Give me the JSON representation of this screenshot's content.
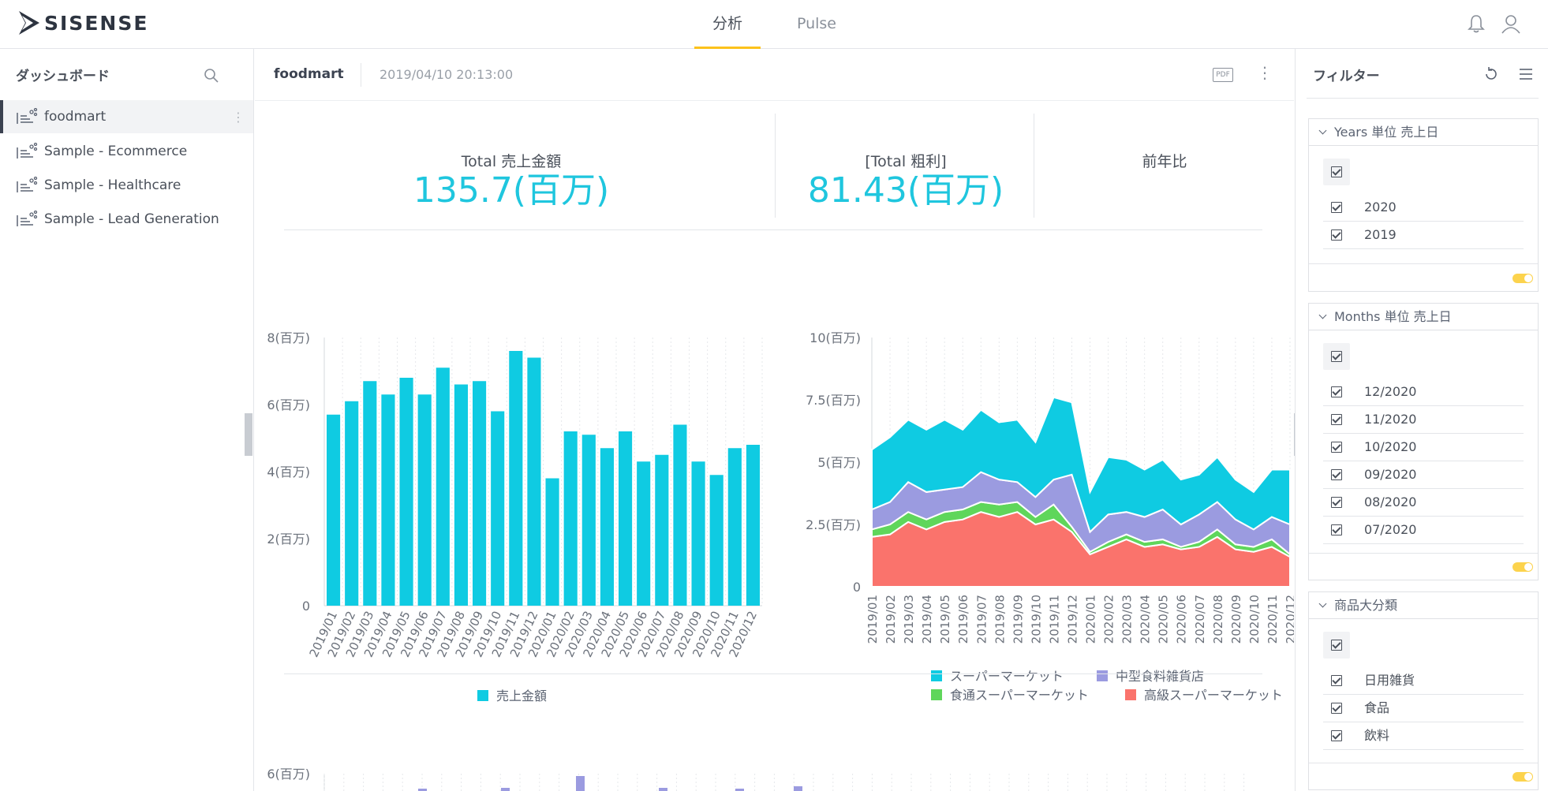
{
  "app": {
    "logo_text": "SISENSE"
  },
  "nav": {
    "tabs": [
      {
        "label": "分析",
        "active": true
      },
      {
        "label": "Pulse",
        "active": false
      }
    ]
  },
  "left": {
    "title": "ダッシュボード",
    "items": [
      {
        "label": "foodmart",
        "active": true
      },
      {
        "label": "Sample - Ecommerce"
      },
      {
        "label": "Sample - Healthcare"
      },
      {
        "label": "Sample - Lead Generation"
      }
    ]
  },
  "dashboard": {
    "name": "foodmart",
    "timestamp": "2019/04/10 20:13:00",
    "pdf_label": "PDF"
  },
  "kpis": [
    {
      "title": "Total 売上金額",
      "value": "135.7(百万)"
    },
    {
      "title": "[Total 粗利]",
      "value": "81.43(百万)"
    },
    {
      "title": "前年比",
      "value": ""
    }
  ],
  "chart_data": [
    {
      "type": "bar",
      "categories": [
        "2019/01",
        "2019/02",
        "2019/03",
        "2019/04",
        "2019/05",
        "2019/06",
        "2019/07",
        "2019/08",
        "2019/09",
        "2019/10",
        "2019/11",
        "2019/12",
        "2020/01",
        "2020/02",
        "2020/03",
        "2020/04",
        "2020/05",
        "2020/06",
        "2020/07",
        "2020/08",
        "2020/09",
        "2020/10",
        "2020/11",
        "2020/12"
      ],
      "series": [
        {
          "name": "売上金額",
          "values": [
            5.7,
            6.1,
            6.7,
            6.3,
            6.8,
            6.3,
            7.1,
            6.6,
            6.7,
            5.8,
            7.6,
            7.4,
            3.8,
            5.2,
            5.1,
            4.7,
            5.2,
            4.3,
            4.5,
            5.4,
            4.3,
            3.9,
            4.7,
            4.8
          ]
        }
      ],
      "ylim": [
        0,
        8
      ],
      "yticks": [
        "0",
        "2(百万)",
        "4(百万)",
        "6(百万)",
        "8(百万)"
      ],
      "legend": "bottom",
      "colors": [
        "#0fcbe2"
      ]
    },
    {
      "type": "area",
      "stacked": true,
      "categories": [
        "2019/01",
        "2019/02",
        "2019/03",
        "2019/04",
        "2019/05",
        "2019/06",
        "2019/07",
        "2019/08",
        "2019/09",
        "2019/10",
        "2019/11",
        "2019/12",
        "2020/01",
        "2020/02",
        "2020/03",
        "2020/04",
        "2020/05",
        "2020/06",
        "2020/07",
        "2020/08",
        "2020/09",
        "2020/10",
        "2020/11",
        "2020/12"
      ],
      "series": [
        {
          "name": "高級スーパーマーケット",
          "values": [
            2.0,
            2.1,
            2.6,
            2.3,
            2.6,
            2.7,
            3.0,
            2.8,
            3.0,
            2.5,
            2.7,
            2.2,
            1.3,
            1.6,
            1.9,
            1.6,
            1.7,
            1.5,
            1.6,
            2.0,
            1.5,
            1.4,
            1.6,
            1.2
          ]
        },
        {
          "name": "食通スーパーマーケット",
          "values": [
            0.3,
            0.4,
            0.4,
            0.4,
            0.4,
            0.4,
            0.4,
            0.5,
            0.4,
            0.3,
            0.6,
            0.2,
            0.1,
            0.2,
            0.2,
            0.2,
            0.2,
            0.1,
            0.2,
            0.3,
            0.2,
            0.2,
            0.3,
            0.1
          ]
        },
        {
          "name": "中型食料雑貨店",
          "values": [
            0.8,
            0.9,
            1.2,
            1.1,
            0.9,
            0.9,
            1.2,
            1.0,
            0.8,
            0.8,
            1.0,
            2.1,
            0.8,
            1.1,
            0.9,
            1.0,
            1.2,
            0.9,
            1.1,
            1.1,
            1.0,
            0.7,
            0.9,
            1.2
          ]
        },
        {
          "name": "スーパーマーケット",
          "values": [
            2.4,
            2.6,
            2.5,
            2.5,
            2.8,
            2.3,
            2.5,
            2.3,
            2.5,
            2.2,
            3.3,
            2.9,
            1.6,
            2.3,
            2.1,
            1.9,
            2.0,
            1.8,
            1.6,
            1.8,
            1.6,
            1.5,
            1.9,
            2.2
          ]
        }
      ],
      "ylim": [
        0,
        10
      ],
      "yticks": [
        "0",
        "2.5(百万)",
        "5(百万)",
        "7.5(百万)",
        "10(百万)"
      ],
      "legend": "bottom",
      "colors": [
        "#fa736c",
        "#5fd65b",
        "#9b9be0",
        "#0fcbe2"
      ]
    },
    {
      "type": "bar",
      "partial": true,
      "ylim": [
        0,
        6
      ],
      "yticks": [
        "6(百万)"
      ],
      "colors": [
        "#9b9be0"
      ]
    }
  ],
  "filters": {
    "title": "フィルター",
    "panels": [
      {
        "title": "Years 単位 売上日",
        "items": [
          "2020",
          "2019"
        ]
      },
      {
        "title": "Months 単位 売上日",
        "items": [
          "12/2020",
          "11/2020",
          "10/2020",
          "09/2020",
          "08/2020",
          "07/2020"
        ]
      },
      {
        "title": "商品大分類",
        "items": [
          "日用雑貨",
          "食品",
          "飲料"
        ]
      }
    ]
  }
}
